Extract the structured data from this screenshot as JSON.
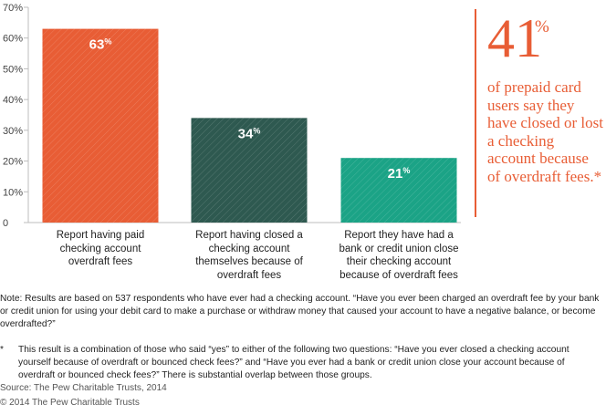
{
  "chart_data": {
    "type": "bar",
    "categories": [
      "Report having paid checking account overdraft fees",
      "Report having closed a checking account themselves because of overdraft fees",
      "Report they have had a bank or credit union close their checking account because of overdraft fees"
    ],
    "category_lines": [
      [
        "Report having paid",
        "checking account",
        "overdraft fees"
      ],
      [
        "Report having closed a",
        "checking account",
        "themselves because of",
        "overdraft fees"
      ],
      [
        "Report they have had a",
        "bank or credit union close",
        "their checking account",
        "because of overdraft fees"
      ]
    ],
    "values": [
      63,
      34,
      21
    ],
    "value_labels": [
      "63",
      "34",
      "21"
    ],
    "value_suffix": "%",
    "bar_colors": [
      "#e85d35",
      "#2e5950",
      "#1ba386"
    ],
    "ylim": [
      0,
      70
    ],
    "yticks": [
      0,
      10,
      20,
      30,
      40,
      50,
      60,
      70
    ],
    "ytick_labels": [
      "0",
      "10%",
      "20%",
      "30%",
      "40%",
      "50%",
      "60%",
      "70%"
    ],
    "grid": false,
    "title": "",
    "xlabel": "",
    "ylabel": ""
  },
  "callout": {
    "number": "41",
    "percent": "%",
    "text": "of prepaid card users say they have closed or lost a checking account because of overdraft fees.*",
    "color": "#e85d35"
  },
  "note": "Note: Results are based on 537 respondents who have ever had a checking account. “Have you ever been charged an overdraft fee by your bank or credit union for using your debit card to make a purchase or withdraw money that caused your account to have a negative balance, or become overdrafted?”",
  "footnote": {
    "marker": "*",
    "text": "This result is a combination of those who said “yes” to either of the following two questions: “Have you ever closed a checking account yourself because of overdraft or bounced check fees?” and “Have you ever had a bank or credit union close your account because of overdraft or bounced check fees?” There is substantial overlap between those groups."
  },
  "source": "Source: The Pew Charitable Trusts, 2014",
  "copyright": "© 2014 The Pew Charitable Trusts"
}
